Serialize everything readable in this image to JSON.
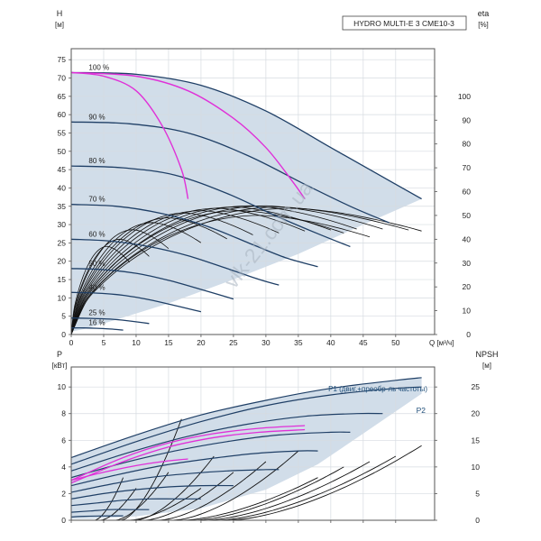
{
  "chart_data": [
    {
      "type": "line",
      "title": "HYDRO MULTI-E 3 CME10-3",
      "y_label_name": "H",
      "y_label_unit": "[м]",
      "y2_label_name": "eta",
      "y2_label_unit": "[%]",
      "x_label": "Q [м³/ч]",
      "xlim": [
        0,
        56
      ],
      "ylim": [
        0,
        78
      ],
      "y2lim": [
        0,
        120
      ],
      "x_ticks": [
        0,
        5,
        10,
        15,
        20,
        25,
        30,
        35,
        40,
        45,
        50
      ],
      "y_ticks": [
        0,
        5,
        10,
        15,
        20,
        25,
        30,
        35,
        40,
        45,
        50,
        55,
        60,
        65,
        70,
        75
      ],
      "y2_ticks": [
        0,
        10,
        20,
        30,
        40,
        50,
        60,
        70,
        80,
        90,
        100
      ],
      "grid": true,
      "watermark": "vlk-21.com.ua",
      "operating_area": {
        "upper": [
          [
            0,
            71.5
          ],
          [
            10,
            71.0
          ],
          [
            20,
            68.0
          ],
          [
            30,
            61.0
          ],
          [
            40,
            51.0
          ],
          [
            48,
            43.0
          ],
          [
            54,
            37.0
          ]
        ],
        "lower": [
          [
            54,
            37.0
          ],
          [
            45,
            30.0
          ],
          [
            35,
            22.0
          ],
          [
            25,
            15.0
          ],
          [
            15,
            8.5
          ],
          [
            5,
            3.0
          ],
          [
            2,
            1.5
          ]
        ]
      },
      "speed_curves": [
        {
          "label": "100 %",
          "points": [
            [
              0,
              71.5
            ],
            [
              10,
              71.0
            ],
            [
              20,
              68.0
            ],
            [
              30,
              61.0
            ],
            [
              40,
              51.0
            ],
            [
              48,
              43.0
            ],
            [
              54,
              37.0
            ]
          ]
        },
        {
          "label": "90 %",
          "points": [
            [
              0,
              58.0
            ],
            [
              9,
              57.5
            ],
            [
              18,
              55.0
            ],
            [
              27,
              49.0
            ],
            [
              36,
              41.0
            ],
            [
              43,
              35.0
            ],
            [
              49,
              30.5
            ]
          ]
        },
        {
          "label": "80 %",
          "points": [
            [
              0,
              46.0
            ],
            [
              8,
              45.5
            ],
            [
              16,
              43.5
            ],
            [
              24,
              38.5
            ],
            [
              32,
              32.0
            ],
            [
              38,
              27.5
            ],
            [
              43,
              24.0
            ]
          ]
        },
        {
          "label": "70 %",
          "points": [
            [
              0,
              35.5
            ],
            [
              7,
              35.0
            ],
            [
              14,
              33.0
            ],
            [
              21,
              29.5
            ],
            [
              28,
              24.5
            ],
            [
              33,
              21.0
            ],
            [
              38,
              18.5
            ]
          ]
        },
        {
          "label": "60 %",
          "points": [
            [
              0,
              26.0
            ],
            [
              6,
              25.5
            ],
            [
              12,
              24.0
            ],
            [
              18,
              21.5
            ],
            [
              24,
              18.0
            ],
            [
              29,
              15.0
            ],
            [
              32,
              13.5
            ]
          ]
        },
        {
          "label": "50 %",
          "points": [
            [
              0,
              18.0
            ],
            [
              5,
              17.7
            ],
            [
              10,
              16.7
            ],
            [
              15,
              14.8
            ],
            [
              20,
              12.3
            ],
            [
              25,
              9.7
            ]
          ]
        },
        {
          "label": "40 %",
          "points": [
            [
              0,
              11.5
            ],
            [
              4,
              11.3
            ],
            [
              8,
              10.7
            ],
            [
              12,
              9.5
            ],
            [
              16,
              7.9
            ],
            [
              20,
              6.2
            ]
          ]
        },
        {
          "label": "25 %",
          "points": [
            [
              0,
              4.5
            ],
            [
              3,
              4.4
            ],
            [
              6,
              4.2
            ],
            [
              9,
              3.7
            ],
            [
              12,
              3.0
            ]
          ]
        },
        {
          "label": "16 %",
          "points": [
            [
              0,
              1.8
            ],
            [
              2,
              1.8
            ],
            [
              4,
              1.7
            ],
            [
              6,
              1.5
            ],
            [
              8,
              1.2
            ]
          ]
        }
      ],
      "limit_curves": [
        {
          "points": [
            [
              0,
              71.5
            ],
            [
              5,
              70.5
            ],
            [
              10,
              66.5
            ],
            [
              14,
              57.0
            ],
            [
              17,
              45.0
            ],
            [
              18,
              37.0
            ]
          ]
        },
        {
          "points": [
            [
              0,
              71.5
            ],
            [
              10,
              70.5
            ],
            [
              18,
              66.5
            ],
            [
              25,
              59.0
            ],
            [
              30,
              51.0
            ],
            [
              34,
              42.0
            ],
            [
              36,
              37.0
            ]
          ]
        }
      ],
      "efficiency_peaks": [
        {
          "qmax": 9,
          "peak": 37,
          "qpeak": 5.5
        },
        {
          "qmax": 12,
          "peak": 40,
          "qpeak": 7.5
        },
        {
          "qmax": 15,
          "peak": 44,
          "qpeak": 9.5
        },
        {
          "qmax": 20,
          "peak": 47,
          "qpeak": 12.5
        },
        {
          "qmax": 24,
          "peak": 49,
          "qpeak": 15
        },
        {
          "qmax": 28,
          "peak": 51,
          "qpeak": 17.5
        },
        {
          "qmax": 32,
          "peak": 52,
          "qpeak": 20
        },
        {
          "qmax": 36,
          "peak": 53,
          "qpeak": 22.5
        },
        {
          "qmax": 40,
          "peak": 53.5,
          "qpeak": 25
        },
        {
          "qmax": 44,
          "peak": 54,
          "qpeak": 27.5
        },
        {
          "qmax": 48,
          "peak": 54,
          "qpeak": 30
        },
        {
          "qmax": 52,
          "peak": 53.5,
          "qpeak": 32
        },
        {
          "qmax": 54,
          "peak": 53,
          "qpeak": 34
        },
        {
          "qmax": 42,
          "peak": 52,
          "qpeak": 26
        },
        {
          "qmax": 46,
          "peak": 50,
          "qpeak": 29
        }
      ]
    },
    {
      "type": "line",
      "y_label_name": "P",
      "y_label_unit": "[кВт]",
      "y2_label_name": "NPSH",
      "y2_label_unit": "[м]",
      "xlim": [
        0,
        56
      ],
      "ylim": [
        0,
        11.5
      ],
      "y2lim": [
        0,
        28.75
      ],
      "y_ticks": [
        0,
        2,
        4,
        6,
        8,
        10
      ],
      "y2_ticks": [
        0,
        5,
        10,
        15,
        20,
        25
      ],
      "grid": true,
      "legend": [
        {
          "name": "P1 (двиг.+преобр-ль частоты)",
          "placement": "upper curve"
        },
        {
          "name": "P2",
          "placement": "lower curve"
        }
      ],
      "power_area": {
        "upper": [
          [
            0,
            4.7
          ],
          [
            10,
            6.4
          ],
          [
            20,
            7.9
          ],
          [
            30,
            9.0
          ],
          [
            40,
            9.9
          ],
          [
            50,
            10.5
          ],
          [
            54,
            10.7
          ]
        ],
        "lower": [
          [
            54,
            9.5
          ],
          [
            45,
            6.5
          ],
          [
            38,
            4.2
          ],
          [
            30,
            2.3
          ],
          [
            20,
            0.9
          ],
          [
            10,
            0.3
          ],
          [
            3,
            0.1
          ]
        ]
      },
      "power_curves": [
        {
          "points": [
            [
              0,
              4.7
            ],
            [
              10,
              6.4
            ],
            [
              20,
              7.9
            ],
            [
              30,
              9.0
            ],
            [
              40,
              9.9
            ],
            [
              50,
              10.5
            ],
            [
              54,
              10.7
            ]
          ]
        },
        {
          "points": [
            [
              0,
              4.2
            ],
            [
              10,
              5.9
            ],
            [
              20,
              7.4
            ],
            [
              30,
              8.6
            ],
            [
              40,
              9.4
            ],
            [
              50,
              9.9
            ],
            [
              54,
              10.0
            ]
          ]
        },
        {
          "points": [
            [
              0,
              3.7
            ],
            [
              9,
              5.1
            ],
            [
              18,
              6.3
            ],
            [
              27,
              7.2
            ],
            [
              36,
              7.8
            ],
            [
              44,
              8.0
            ],
            [
              48,
              8.0
            ]
          ]
        },
        {
          "points": [
            [
              0,
              3.2
            ],
            [
              8,
              4.3
            ],
            [
              16,
              5.2
            ],
            [
              24,
              5.9
            ],
            [
              32,
              6.4
            ],
            [
              40,
              6.6
            ],
            [
              43,
              6.6
            ]
          ]
        },
        {
          "points": [
            [
              0,
              2.6
            ],
            [
              7,
              3.4
            ],
            [
              14,
              4.1
            ],
            [
              21,
              4.6
            ],
            [
              28,
              5.0
            ],
            [
              35,
              5.2
            ],
            [
              38,
              5.2
            ]
          ]
        },
        {
          "points": [
            [
              0,
              2.1
            ],
            [
              6,
              2.7
            ],
            [
              12,
              3.2
            ],
            [
              18,
              3.5
            ],
            [
              24,
              3.7
            ],
            [
              30,
              3.8
            ],
            [
              32,
              3.8
            ]
          ]
        },
        {
          "points": [
            [
              0,
              1.6
            ],
            [
              5,
              2.0
            ],
            [
              10,
              2.3
            ],
            [
              15,
              2.5
            ],
            [
              20,
              2.6
            ],
            [
              25,
              2.6
            ]
          ]
        },
        {
          "points": [
            [
              0,
              1.1
            ],
            [
              4,
              1.3
            ],
            [
              8,
              1.5
            ],
            [
              12,
              1.6
            ],
            [
              16,
              1.6
            ],
            [
              20,
              1.6
            ]
          ]
        },
        {
          "points": [
            [
              0,
              0.6
            ],
            [
              3,
              0.7
            ],
            [
              6,
              0.8
            ],
            [
              9,
              0.8
            ],
            [
              12,
              0.8
            ]
          ]
        },
        {
          "points": [
            [
              0,
              0.25
            ],
            [
              2,
              0.3
            ],
            [
              4,
              0.32
            ],
            [
              6,
              0.33
            ],
            [
              8,
              0.33
            ]
          ]
        }
      ],
      "limit_power_curves": [
        {
          "points": [
            [
              0,
              3.0
            ],
            [
              5,
              3.6
            ],
            [
              10,
              4.1
            ],
            [
              14,
              4.4
            ],
            [
              18,
              4.6
            ]
          ]
        },
        {
          "points": [
            [
              0,
              3.0
            ],
            [
              8,
              4.7
            ],
            [
              15,
              5.8
            ],
            [
              22,
              6.5
            ],
            [
              29,
              6.9
            ],
            [
              36,
              7.1
            ]
          ]
        },
        {
          "points": [
            [
              0,
              2.8
            ],
            [
              8,
              4.4
            ],
            [
              15,
              5.5
            ],
            [
              22,
              6.2
            ],
            [
              29,
              6.6
            ],
            [
              36,
              6.8
            ]
          ]
        }
      ],
      "npsh_curves": [
        {
          "qmax": 8,
          "npsh": 8
        },
        {
          "qmax": 10,
          "npsh": 6
        },
        {
          "qmax": 15,
          "npsh": 9
        },
        {
          "qmax": 17,
          "npsh": 19
        },
        {
          "qmax": 20,
          "npsh": 6
        },
        {
          "qmax": 25,
          "npsh": 9
        },
        {
          "qmax": 30,
          "npsh": 11
        },
        {
          "qmax": 35,
          "npsh": 13
        },
        {
          "qmax": 38,
          "npsh": 8
        },
        {
          "qmax": 42,
          "npsh": 10
        },
        {
          "qmax": 46,
          "npsh": 11
        },
        {
          "qmax": 50,
          "npsh": 12
        },
        {
          "qmax": 54,
          "npsh": 14
        },
        {
          "qmax": 22,
          "npsh": 12
        }
      ]
    }
  ]
}
